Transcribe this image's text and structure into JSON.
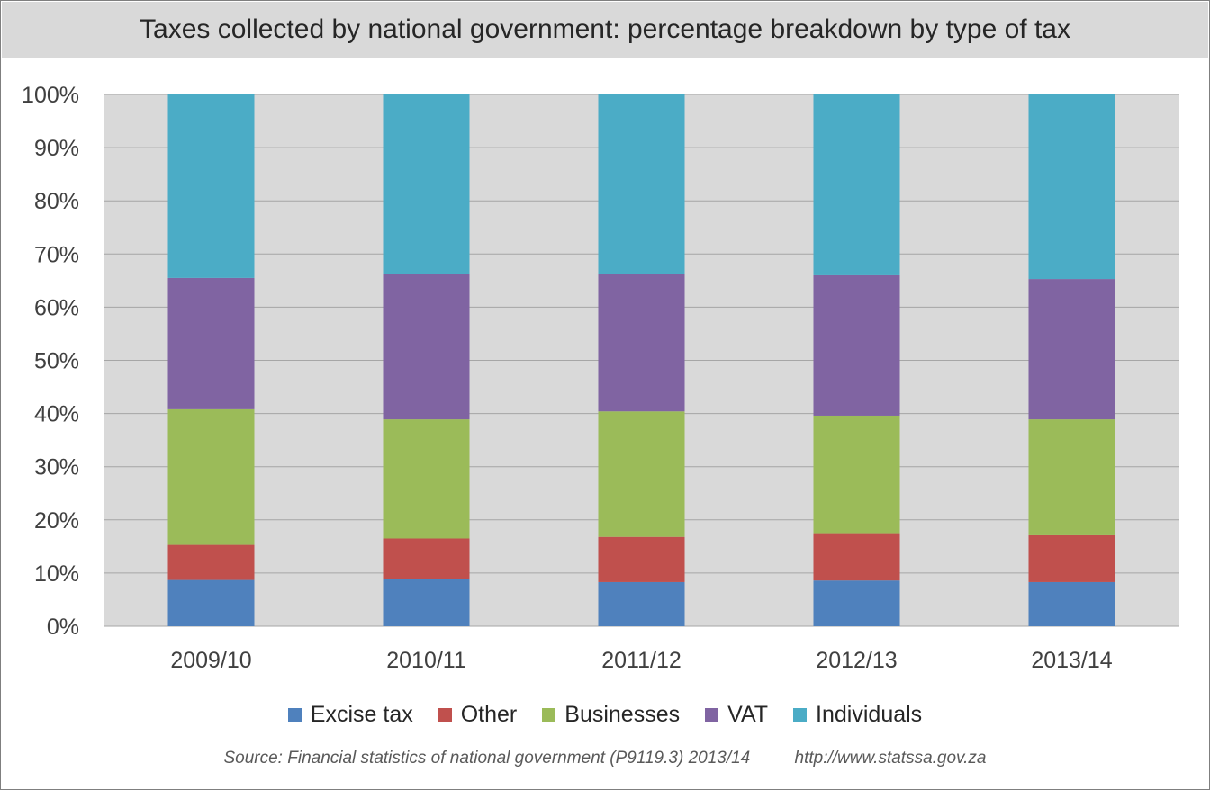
{
  "chart_data": {
    "type": "bar",
    "stacked": true,
    "percent": true,
    "title": "Taxes collected by national government: percentage breakdown by type of tax",
    "categories": [
      "2009/10",
      "2010/11",
      "2011/12",
      "2012/13",
      "2013/14"
    ],
    "series": [
      {
        "name": "Excise tax",
        "color": "#4f81bd",
        "values": [
          8.7,
          8.9,
          8.3,
          8.6,
          8.3
        ]
      },
      {
        "name": "Other",
        "color": "#c0504d",
        "values": [
          6.6,
          7.6,
          8.5,
          8.9,
          8.8
        ]
      },
      {
        "name": "Businesses",
        "color": "#9bbb59",
        "values": [
          25.5,
          22.4,
          23.6,
          22.1,
          21.8
        ]
      },
      {
        "name": "VAT",
        "color": "#8064a2",
        "values": [
          24.7,
          27.3,
          25.8,
          26.4,
          26.4
        ]
      },
      {
        "name": "Individuals",
        "color": "#4bacc6",
        "values": [
          34.5,
          33.8,
          33.8,
          34.0,
          34.7
        ]
      }
    ],
    "yticks": [
      "0%",
      "10%",
      "20%",
      "30%",
      "40%",
      "50%",
      "60%",
      "70%",
      "80%",
      "90%",
      "100%"
    ],
    "ylim": [
      0,
      100
    ],
    "grid": true,
    "legend": "bottom"
  },
  "source": {
    "text": "Source: Financial statistics of national government (P9119.3) 2013/14",
    "url": "http://www.statssa.gov.za"
  }
}
